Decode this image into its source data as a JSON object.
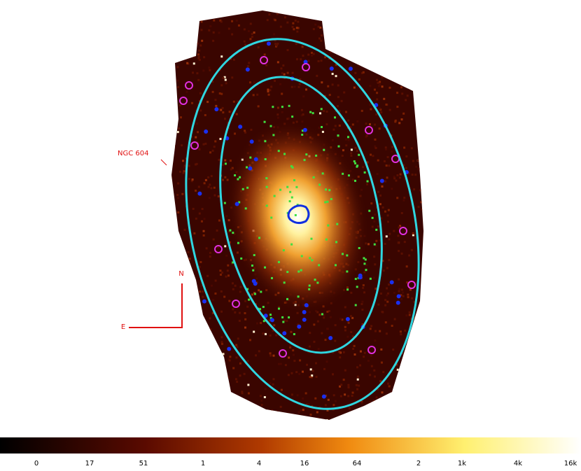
{
  "annotation": {
    "label": "NGC 604"
  },
  "compass": {
    "north": "N",
    "east": "E"
  },
  "colorbar": {
    "ticks": [
      "0",
      "17",
      "51",
      "1",
      "4",
      "16",
      "64",
      "2",
      "1k",
      "4k",
      "16k"
    ]
  }
}
